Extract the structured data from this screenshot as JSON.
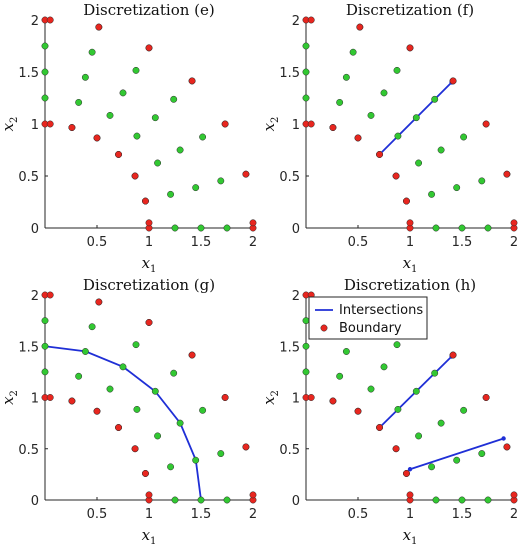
{
  "colors": {
    "interior": "#32c832",
    "boundary": "#e8261f",
    "intersection": "#1f2fd6",
    "axis": "#262626"
  },
  "chart_data": [
    {
      "type": "scatter",
      "title": "Discretization (e)",
      "xlabel": "x",
      "xlabel_sub": "1",
      "ylabel": "x",
      "ylabel_sub": "2",
      "xlim": [
        0,
        2
      ],
      "ylim": [
        0,
        2
      ],
      "xticks": [
        0.5,
        1,
        1.5,
        2
      ],
      "yticks": [
        0,
        0.5,
        1,
        1.5,
        2
      ],
      "grid": false,
      "legend": false,
      "discretization": {
        "rays": [
          0,
          15,
          30,
          45,
          60,
          75,
          90
        ],
        "inner_radius": 1,
        "outer_radius": 2,
        "samples_per_ray": 5,
        "boundary_ends": "double"
      },
      "series": [],
      "lines": []
    },
    {
      "type": "scatter",
      "title": "Discretization (f)",
      "xlabel": "x",
      "xlabel_sub": "1",
      "ylabel": "x",
      "ylabel_sub": "2",
      "xlim": [
        0,
        2
      ],
      "ylim": [
        0,
        2
      ],
      "xticks": [
        0.5,
        1,
        1.5,
        2
      ],
      "yticks": [
        0,
        0.5,
        1,
        1.5,
        2
      ],
      "grid": false,
      "legend": false,
      "discretization": {
        "rays": [
          0,
          15,
          30,
          45,
          60,
          75,
          90
        ],
        "inner_radius": 1,
        "outer_radius": 2,
        "samples_per_ray": 5,
        "boundary_ends": "double"
      },
      "series": [],
      "lines": [
        {
          "x": [
            0.71,
            1.4
          ],
          "y": [
            0.71,
            1.4
          ]
        }
      ]
    },
    {
      "type": "scatter",
      "title": "Discretization (g)",
      "xlabel": "x",
      "xlabel_sub": "1",
      "ylabel": "x",
      "ylabel_sub": "2",
      "xlim": [
        0,
        2
      ],
      "ylim": [
        0,
        2
      ],
      "xticks": [
        0.5,
        1,
        1.5,
        2
      ],
      "yticks": [
        0,
        0.5,
        1,
        1.5,
        2
      ],
      "grid": false,
      "legend": false,
      "discretization": {
        "rays": [
          0,
          15,
          30,
          45,
          60,
          75,
          90
        ],
        "inner_radius": 1,
        "outer_radius": 2,
        "samples_per_ray": 5,
        "boundary_ends": "double"
      },
      "series": [],
      "lines": [
        {
          "x": [
            0,
            0.39,
            0.75,
            1.06,
            1.3,
            1.45,
            1.5
          ],
          "y": [
            1.5,
            1.45,
            1.3,
            1.06,
            0.75,
            0.39,
            0
          ]
        }
      ]
    },
    {
      "type": "scatter",
      "title": "Discretization (h)",
      "xlabel": "x",
      "xlabel_sub": "1",
      "ylabel": "x",
      "ylabel_sub": "2",
      "xlim": [
        0,
        2
      ],
      "ylim": [
        0,
        2
      ],
      "xticks": [
        0.5,
        1,
        1.5,
        2
      ],
      "yticks": [
        0,
        0.5,
        1,
        1.5,
        2
      ],
      "grid": false,
      "legend": true,
      "legend_position": "top-left",
      "legend_entries": [
        "Intersections",
        "Boundary"
      ],
      "discretization": {
        "rays": [
          0,
          15,
          30,
          45,
          60,
          75,
          90
        ],
        "inner_radius": 1,
        "outer_radius": 2,
        "samples_per_ray": 5,
        "boundary_ends": "double"
      },
      "series": [],
      "lines": [
        {
          "x": [
            0.71,
            1.4
          ],
          "y": [
            0.71,
            1.4
          ]
        },
        {
          "x": [
            1.0,
            1.9
          ],
          "y": [
            0.3,
            0.6
          ]
        }
      ]
    }
  ]
}
